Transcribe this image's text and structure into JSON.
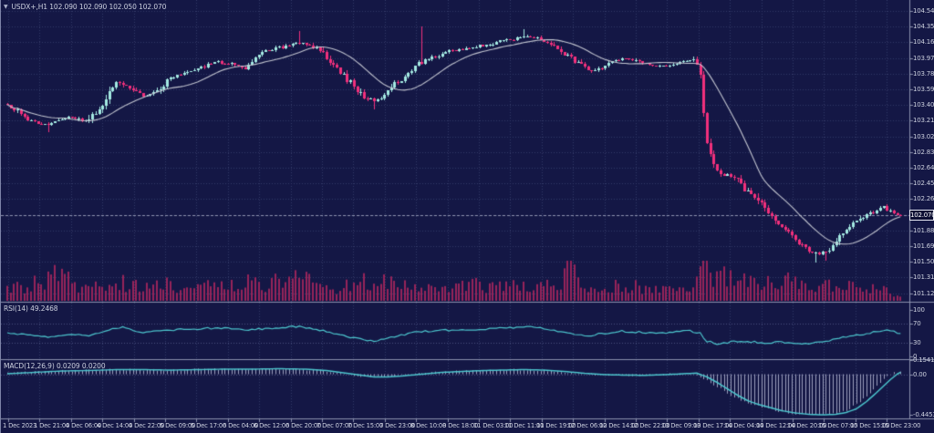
{
  "window": {
    "title_text": "USDX+,H1 102.090 102.090 102.050 102.070",
    "symbol_dropdown_icon": "▼"
  },
  "colors": {
    "background": "#141745",
    "grid": "#333a68",
    "bull_candle": "#a3e9e2",
    "bear_candle": "#f1307c",
    "ma_line": "#c3c6d1",
    "volume_bars": "#97245a",
    "indicator_line": "#4cc5cd",
    "macd_histogram": "#b4b9d2",
    "separator": "#8b91ad",
    "axis_text": "#ccd0de",
    "level_lines": "#4a5181",
    "bid_line": "#8f94b0",
    "tag_background": "#0d0f33",
    "tag_border": "#e6e8f2"
  },
  "chart_data": {
    "type": "candlestick",
    "symbol": "USDX+",
    "timeframe": "H1",
    "title": "USDX+,H1",
    "ohlc_display": {
      "open": "102.090",
      "high": "102.090",
      "low": "102.050",
      "close": "102.070"
    },
    "last_price": 102.07,
    "bars": 264,
    "y_axis": {
      "top_value": 104.545,
      "step": 0.19,
      "tick_labels": [
        "104.545",
        "104.355",
        "104.165",
        "103.975",
        "103.785",
        "103.595",
        "103.405",
        "103.215",
        "103.025",
        "102.835",
        "102.645",
        "102.455",
        "102.265",
        "102.075",
        "101.885",
        "101.695",
        "101.505",
        "101.315",
        "101.125"
      ],
      "hidden_tick_index": 13,
      "ylim": [
        101.02,
        104.68
      ]
    },
    "x_axis": {
      "tick_labels": [
        "1 Dec 2023",
        "1 Dec 21:00",
        "4 Dec 06:00",
        "4 Dec 14:00",
        "4 Dec 22:00",
        "5 Dec 09:00",
        "5 Dec 17:00",
        "6 Dec 04:00",
        "6 Dec 12:00",
        "6 Dec 20:00",
        "7 Dec 07:00",
        "7 Dec 15:00",
        "7 Dec 23:00",
        "8 Dec 10:00",
        "8 Dec 18:00",
        "11 Dec 03:00",
        "11 Dec 11:00",
        "11 Dec 19:00",
        "12 Dec 06:00",
        "12 Dec 14:00",
        "12 Dec 22:00",
        "13 Dec 09:00",
        "13 Dec 17:00",
        "14 Dec 04:00",
        "14 Dec 12:00",
        "14 Dec 20:00",
        "15 Dec 07:00",
        "15 Dec 15:00",
        "15 Dec 23:00"
      ]
    },
    "price_anchors": [
      [
        0,
        103.42
      ],
      [
        4,
        103.32
      ],
      [
        8,
        103.2
      ],
      [
        12,
        103.16
      ],
      [
        16,
        103.24
      ],
      [
        20,
        103.26
      ],
      [
        24,
        103.19
      ],
      [
        28,
        103.4
      ],
      [
        31,
        103.62
      ],
      [
        33,
        103.7
      ],
      [
        36,
        103.62
      ],
      [
        40,
        103.52
      ],
      [
        44,
        103.55
      ],
      [
        48,
        103.72
      ],
      [
        52,
        103.78
      ],
      [
        56,
        103.83
      ],
      [
        62,
        103.93
      ],
      [
        66,
        103.9
      ],
      [
        70,
        103.85
      ],
      [
        74,
        104.02
      ],
      [
        78,
        104.07
      ],
      [
        82,
        104.12
      ],
      [
        86,
        104.16
      ],
      [
        90,
        104.12
      ],
      [
        93,
        104.05
      ],
      [
        97,
        103.88
      ],
      [
        101,
        103.7
      ],
      [
        105,
        103.52
      ],
      [
        108,
        103.44
      ],
      [
        111,
        103.52
      ],
      [
        114,
        103.65
      ],
      [
        118,
        103.77
      ],
      [
        122,
        103.92
      ],
      [
        126,
        103.99
      ],
      [
        130,
        104.05
      ],
      [
        134,
        104.08
      ],
      [
        138,
        104.11
      ],
      [
        142,
        104.14
      ],
      [
        146,
        104.18
      ],
      [
        150,
        104.21
      ],
      [
        154,
        104.24
      ],
      [
        158,
        104.2
      ],
      [
        161,
        104.13
      ],
      [
        164,
        104.05
      ],
      [
        167,
        103.95
      ],
      [
        170,
        103.87
      ],
      [
        173,
        103.81
      ],
      [
        176,
        103.87
      ],
      [
        180,
        103.95
      ],
      [
        184,
        103.97
      ],
      [
        187,
        103.92
      ],
      [
        190,
        103.88
      ],
      [
        193,
        103.87
      ],
      [
        196,
        103.9
      ],
      [
        199,
        103.94
      ],
      [
        202,
        103.95
      ],
      [
        204,
        103.88
      ],
      [
        205,
        103.6
      ],
      [
        206,
        103.1
      ],
      [
        207,
        102.88
      ],
      [
        208,
        102.72
      ],
      [
        209,
        102.62
      ],
      [
        211,
        102.55
      ],
      [
        213,
        102.56
      ],
      [
        215,
        102.5
      ],
      [
        217,
        102.4
      ],
      [
        219,
        102.33
      ],
      [
        221,
        102.28
      ],
      [
        223,
        102.15
      ],
      [
        225,
        102.06
      ],
      [
        227,
        101.98
      ],
      [
        229,
        101.9
      ],
      [
        231,
        101.83
      ],
      [
        233,
        101.76
      ],
      [
        235,
        101.69
      ],
      [
        237,
        101.63
      ],
      [
        239,
        101.6
      ],
      [
        241,
        101.62
      ],
      [
        243,
        101.68
      ],
      [
        245,
        101.78
      ],
      [
        247,
        101.87
      ],
      [
        249,
        101.94
      ],
      [
        251,
        102.0
      ],
      [
        253,
        102.05
      ],
      [
        255,
        102.1
      ],
      [
        257,
        102.14
      ],
      [
        259,
        102.17
      ],
      [
        261,
        102.11
      ],
      [
        263,
        102.07
      ]
    ],
    "wick_events": [
      {
        "i": 12,
        "low": 103.08
      },
      {
        "i": 86,
        "high": 104.3
      },
      {
        "i": 108,
        "low": 103.35
      },
      {
        "i": 122,
        "high": 104.36
      },
      {
        "i": 152,
        "high": 104.32
      },
      {
        "i": 205,
        "high": 103.7
      },
      {
        "i": 238,
        "low": 101.5
      },
      {
        "i": 241,
        "low": 101.52
      }
    ],
    "volume_profile": [
      [
        0,
        12
      ],
      [
        6,
        18
      ],
      [
        12,
        26
      ],
      [
        17,
        34
      ],
      [
        22,
        14
      ],
      [
        28,
        18
      ],
      [
        34,
        22
      ],
      [
        40,
        15
      ],
      [
        46,
        18
      ],
      [
        52,
        20
      ],
      [
        58,
        16
      ],
      [
        64,
        18
      ],
      [
        70,
        22
      ],
      [
        76,
        18
      ],
      [
        84,
        34
      ],
      [
        90,
        20
      ],
      [
        96,
        15
      ],
      [
        102,
        20
      ],
      [
        108,
        26
      ],
      [
        114,
        18
      ],
      [
        120,
        16
      ],
      [
        126,
        13
      ],
      [
        132,
        16
      ],
      [
        138,
        18
      ],
      [
        144,
        20
      ],
      [
        150,
        17
      ],
      [
        156,
        14
      ],
      [
        162,
        22
      ],
      [
        166,
        42
      ],
      [
        170,
        22
      ],
      [
        176,
        16
      ],
      [
        182,
        18
      ],
      [
        188,
        16
      ],
      [
        194,
        13
      ],
      [
        200,
        15
      ],
      [
        205,
        40
      ],
      [
        208,
        30
      ],
      [
        212,
        26
      ],
      [
        216,
        22
      ],
      [
        220,
        24
      ],
      [
        224,
        20
      ],
      [
        228,
        22
      ],
      [
        232,
        26
      ],
      [
        236,
        24
      ],
      [
        240,
        20
      ],
      [
        244,
        18
      ],
      [
        248,
        16
      ],
      [
        252,
        15
      ],
      [
        256,
        13
      ],
      [
        260,
        11
      ],
      [
        263,
        9
      ]
    ],
    "indicators": {
      "ma": {
        "name": "Moving Average",
        "period": 18
      },
      "rsi": {
        "label": "RSI(14) 49.2468",
        "period": 14,
        "last": 49.2468,
        "levels": [
          70,
          30
        ],
        "scale_ticks": [
          {
            "text": "100",
            "value": 100
          },
          {
            "text": "70",
            "value": 70
          },
          {
            "text": "30",
            "value": 30
          },
          {
            "text": "0",
            "value": 0
          }
        ],
        "anchors": [
          [
            0,
            52
          ],
          [
            6,
            45
          ],
          [
            12,
            41
          ],
          [
            18,
            48
          ],
          [
            24,
            44
          ],
          [
            30,
            58
          ],
          [
            34,
            62
          ],
          [
            40,
            52
          ],
          [
            46,
            55
          ],
          [
            52,
            58
          ],
          [
            58,
            60
          ],
          [
            64,
            62
          ],
          [
            70,
            56
          ],
          [
            76,
            60
          ],
          [
            82,
            63
          ],
          [
            86,
            65
          ],
          [
            92,
            57
          ],
          [
            97,
            48
          ],
          [
            102,
            40
          ],
          [
            106,
            35
          ],
          [
            108,
            33
          ],
          [
            112,
            40
          ],
          [
            116,
            46
          ],
          [
            120,
            52
          ],
          [
            126,
            56
          ],
          [
            132,
            57
          ],
          [
            138,
            58
          ],
          [
            144,
            60
          ],
          [
            150,
            62
          ],
          [
            156,
            63
          ],
          [
            161,
            56
          ],
          [
            166,
            49
          ],
          [
            171,
            45
          ],
          [
            176,
            50
          ],
          [
            181,
            54
          ],
          [
            186,
            52
          ],
          [
            191,
            49
          ],
          [
            196,
            52
          ],
          [
            201,
            55
          ],
          [
            204,
            50
          ],
          [
            206,
            33
          ],
          [
            209,
            27
          ],
          [
            212,
            30
          ],
          [
            216,
            33
          ],
          [
            220,
            31
          ],
          [
            224,
            29
          ],
          [
            228,
            31
          ],
          [
            232,
            28
          ],
          [
            236,
            27
          ],
          [
            240,
            31
          ],
          [
            244,
            38
          ],
          [
            248,
            43
          ],
          [
            252,
            48
          ],
          [
            256,
            53
          ],
          [
            259,
            57
          ],
          [
            261,
            53
          ],
          [
            263,
            49.2
          ]
        ]
      },
      "macd": {
        "label": "MACD(12,26,9) 0.0209 0.0200",
        "params": "12,26,9",
        "last_main": 0.0209,
        "last_signal": 0.02,
        "scale_ticks": [
          {
            "text": "0.1541",
            "value": 0.1541
          },
          {
            "text": "0.00",
            "value": 0
          },
          {
            "text": "-0.4453",
            "value": -0.4453
          }
        ],
        "anchors": [
          [
            0,
            0.005
          ],
          [
            8,
            0.02
          ],
          [
            16,
            0.035
          ],
          [
            24,
            0.04
          ],
          [
            32,
            0.05
          ],
          [
            40,
            0.05
          ],
          [
            48,
            0.045
          ],
          [
            56,
            0.05
          ],
          [
            64,
            0.055
          ],
          [
            72,
            0.055
          ],
          [
            80,
            0.06
          ],
          [
            88,
            0.055
          ],
          [
            94,
            0.04
          ],
          [
            100,
            0.01
          ],
          [
            104,
            -0.01
          ],
          [
            108,
            -0.03
          ],
          [
            112,
            -0.03
          ],
          [
            116,
            -0.02
          ],
          [
            122,
            0.0
          ],
          [
            128,
            0.02
          ],
          [
            134,
            0.03
          ],
          [
            140,
            0.04
          ],
          [
            146,
            0.045
          ],
          [
            152,
            0.05
          ],
          [
            158,
            0.045
          ],
          [
            164,
            0.03
          ],
          [
            170,
            0.01
          ],
          [
            176,
            -0.005
          ],
          [
            182,
            -0.01
          ],
          [
            188,
            -0.012
          ],
          [
            194,
            -0.005
          ],
          [
            199,
            0.005
          ],
          [
            203,
            0.012
          ],
          [
            206,
            -0.03
          ],
          [
            209,
            -0.09
          ],
          [
            212,
            -0.16
          ],
          [
            215,
            -0.23
          ],
          [
            218,
            -0.29
          ],
          [
            221,
            -0.33
          ],
          [
            224,
            -0.36
          ],
          [
            228,
            -0.4
          ],
          [
            232,
            -0.425
          ],
          [
            236,
            -0.44
          ],
          [
            240,
            -0.4453
          ],
          [
            244,
            -0.44
          ],
          [
            247,
            -0.42
          ],
          [
            250,
            -0.38
          ],
          [
            253,
            -0.3
          ],
          [
            256,
            -0.2
          ],
          [
            258,
            -0.13
          ],
          [
            260,
            -0.06
          ],
          [
            262,
            0.0
          ],
          [
            263,
            0.02
          ]
        ]
      }
    }
  }
}
